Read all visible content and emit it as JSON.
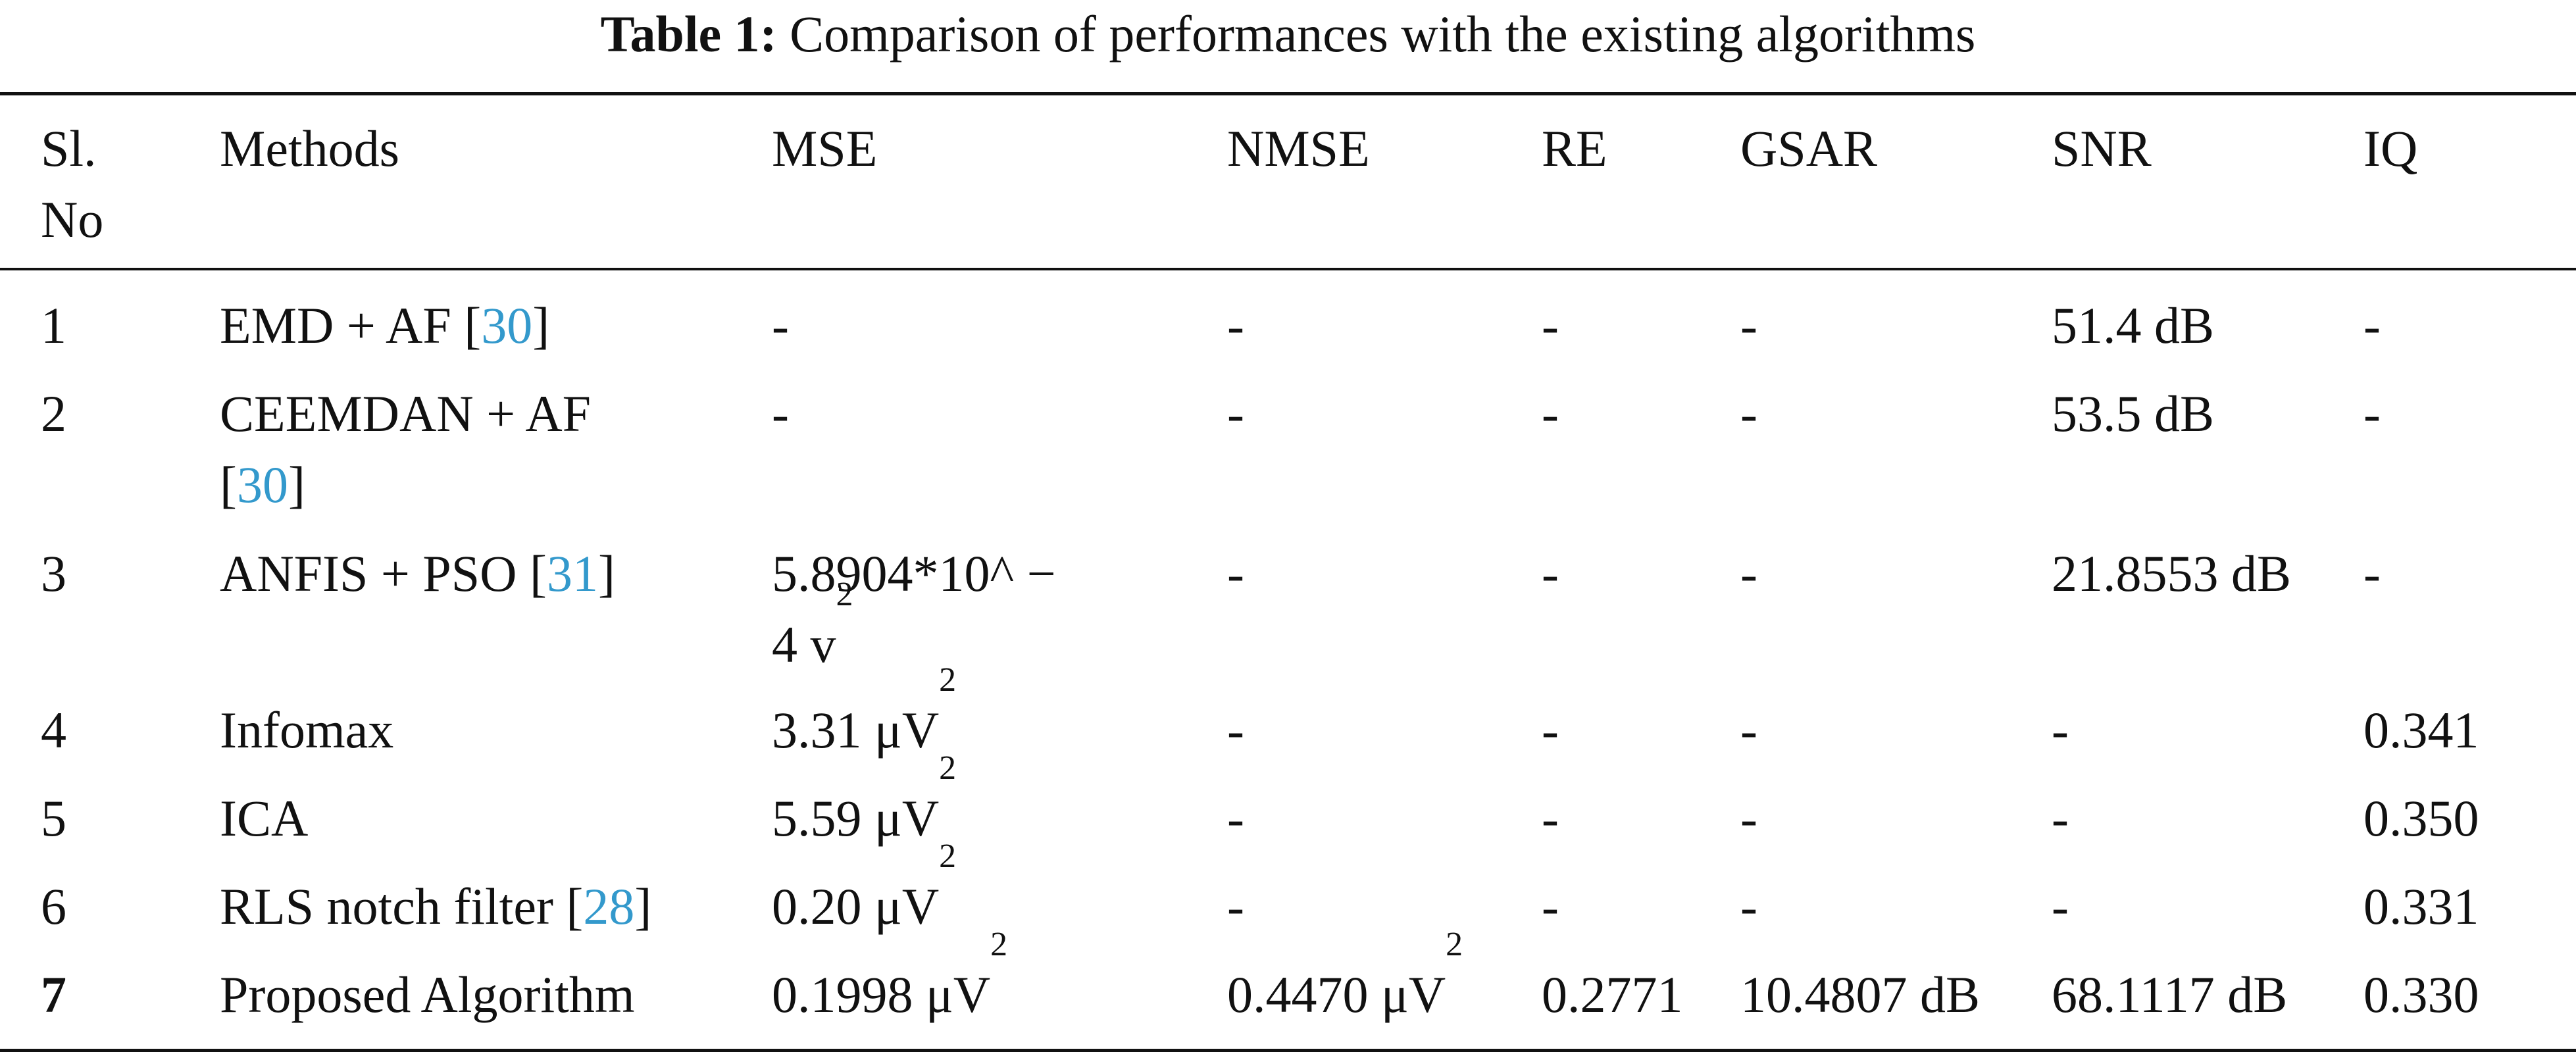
{
  "caption": {
    "label": "Table 1:",
    "text": "Comparison of performances with the existing algorithms"
  },
  "headers": {
    "slno_line1": "Sl.",
    "slno_line2": "No",
    "methods": "Methods",
    "mse": "MSE",
    "nmse": "NMSE",
    "re": "RE",
    "gsar": "GSAR",
    "snr": "SNR",
    "iq": "IQ"
  },
  "rows": [
    {
      "no": "1",
      "method": "EMD + AF [",
      "ref": "30",
      "method_tail": "]",
      "mse": "-",
      "nmse": "-",
      "re": "-",
      "gsar": "-",
      "snr": "51.4 dB",
      "iq": "-"
    },
    {
      "no": "2",
      "method": "CEEMDAN + AF",
      "method_line2_pre": "[",
      "ref": "30",
      "method_tail": "]",
      "mse": "-",
      "nmse": "-",
      "re": "-",
      "gsar": "-",
      "snr": "53.5 dB",
      "iq": "-"
    },
    {
      "no": "3",
      "method": "ANFIS + PSO [",
      "ref": "31",
      "method_tail": "]",
      "mse_line1": "5.8904*10^ −",
      "mse_line2": "4 v",
      "mse_sup": "2",
      "nmse": "-",
      "re": "-",
      "gsar": "-",
      "snr": "21.8553 dB",
      "iq": "-"
    },
    {
      "no": "4",
      "method": "Infomax",
      "mse": "3.31 μV",
      "mse_sup": "2",
      "nmse": "-",
      "re": "-",
      "gsar": "-",
      "snr": "-",
      "iq": "0.341"
    },
    {
      "no": "5",
      "method": "ICA",
      "mse": "5.59 μV",
      "mse_sup": "2",
      "nmse": "-",
      "re": "-",
      "gsar": "-",
      "snr": "-",
      "iq": "0.350"
    },
    {
      "no": "6",
      "method": "RLS notch filter [",
      "ref": "28",
      "method_tail": "]",
      "mse": "0.20 μV",
      "mse_sup": "2",
      "nmse": "-",
      "re": "-",
      "gsar": "-",
      "snr": "-",
      "iq": "0.331"
    },
    {
      "no": "7",
      "method": "Proposed Algorithm",
      "mse": "0.1998 μV",
      "mse_sup": "2",
      "nmse": "0.4470 μV",
      "nmse_sup": "2",
      "re": "0.2771",
      "gsar": "10.4807 dB",
      "snr": "68.1117 dB",
      "iq": "0.330"
    }
  ]
}
